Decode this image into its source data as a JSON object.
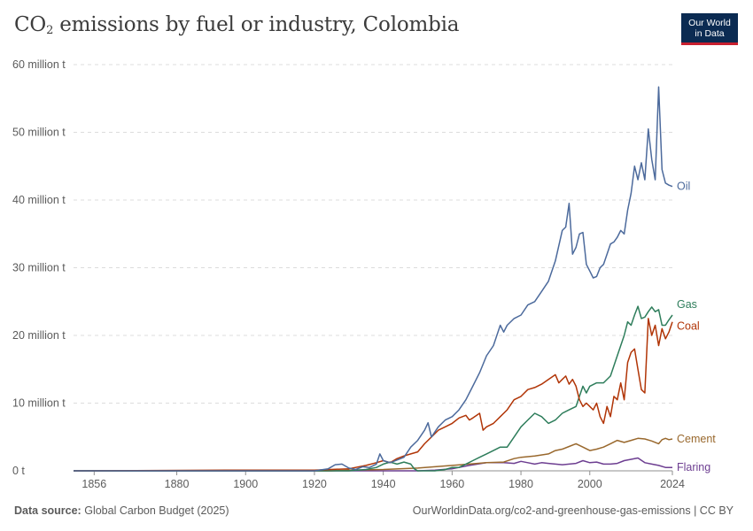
{
  "title_main": "CO",
  "title_sub": "2",
  "title_rest": " emissions by fuel or industry, Colombia",
  "logo": {
    "line1": "Our World",
    "line2": "in Data"
  },
  "footer": {
    "source_label": "Data source:",
    "source_value": "Global Carbon Budget (2025)",
    "right": "OurWorldinData.org/co2-and-greenhouse-gas-emissions | CC BY"
  },
  "chart_data": {
    "type": "line",
    "title": "CO₂ emissions by fuel or industry, Colombia",
    "xlabel": "",
    "ylabel": "",
    "xlim": [
      1850,
      2024
    ],
    "ylim": [
      0,
      60
    ],
    "y_unit": "million t",
    "y_ticks": [
      {
        "value": 0,
        "label": "0 t"
      },
      {
        "value": 10,
        "label": "10 million t"
      },
      {
        "value": 20,
        "label": "20 million t"
      },
      {
        "value": 30,
        "label": "30 million t"
      },
      {
        "value": 40,
        "label": "40 million t"
      },
      {
        "value": 50,
        "label": "50 million t"
      },
      {
        "value": 60,
        "label": "60 million t"
      }
    ],
    "x_ticks": [
      {
        "value": 1856,
        "label": "1856"
      },
      {
        "value": 1880,
        "label": "1880"
      },
      {
        "value": 1900,
        "label": "1900"
      },
      {
        "value": 1920,
        "label": "1920"
      },
      {
        "value": 1940,
        "label": "1940"
      },
      {
        "value": 1960,
        "label": "1960"
      },
      {
        "value": 1980,
        "label": "1980"
      },
      {
        "value": 2000,
        "label": "2000"
      },
      {
        "value": 2024,
        "label": "2024"
      }
    ],
    "series": [
      {
        "name": "Oil",
        "color": "#4c6a9c",
        "points": [
          [
            1850,
            0
          ],
          [
            1920,
            0
          ],
          [
            1924,
            0.3
          ],
          [
            1926,
            0.9
          ],
          [
            1928,
            1.0
          ],
          [
            1930,
            0.4
          ],
          [
            1932,
            0.2
          ],
          [
            1934,
            0.6
          ],
          [
            1936,
            0.5
          ],
          [
            1938,
            1.0
          ],
          [
            1939,
            2.5
          ],
          [
            1940,
            1.5
          ],
          [
            1942,
            1.2
          ],
          [
            1944,
            1.6
          ],
          [
            1946,
            2.0
          ],
          [
            1948,
            3.5
          ],
          [
            1950,
            4.5
          ],
          [
            1952,
            6.0
          ],
          [
            1953,
            7.1
          ],
          [
            1954,
            5.0
          ],
          [
            1956,
            6.5
          ],
          [
            1958,
            7.5
          ],
          [
            1960,
            8.0
          ],
          [
            1962,
            9.0
          ],
          [
            1964,
            10.5
          ],
          [
            1966,
            12.5
          ],
          [
            1968,
            14.5
          ],
          [
            1970,
            17.0
          ],
          [
            1972,
            18.5
          ],
          [
            1974,
            21.5
          ],
          [
            1975,
            20.5
          ],
          [
            1976,
            21.5
          ],
          [
            1978,
            22.5
          ],
          [
            1980,
            23.0
          ],
          [
            1982,
            24.5
          ],
          [
            1984,
            25.0
          ],
          [
            1986,
            26.5
          ],
          [
            1988,
            28.0
          ],
          [
            1990,
            31.0
          ],
          [
            1992,
            35.5
          ],
          [
            1993,
            36.0
          ],
          [
            1994,
            39.5
          ],
          [
            1995,
            32.0
          ],
          [
            1996,
            33.0
          ],
          [
            1997,
            35.0
          ],
          [
            1998,
            35.2
          ],
          [
            1999,
            30.5
          ],
          [
            2000,
            29.5
          ],
          [
            2001,
            28.5
          ],
          [
            2002,
            28.7
          ],
          [
            2003,
            30.0
          ],
          [
            2004,
            30.5
          ],
          [
            2005,
            32.0
          ],
          [
            2006,
            33.5
          ],
          [
            2007,
            33.8
          ],
          [
            2008,
            34.5
          ],
          [
            2009,
            35.5
          ],
          [
            2010,
            35.0
          ],
          [
            2011,
            38.5
          ],
          [
            2012,
            41.0
          ],
          [
            2013,
            45.0
          ],
          [
            2014,
            43.0
          ],
          [
            2015,
            45.5
          ],
          [
            2016,
            43.0
          ],
          [
            2017,
            50.5
          ],
          [
            2018,
            46.0
          ],
          [
            2019,
            43.0
          ],
          [
            2020,
            56.7
          ],
          [
            2021,
            44.5
          ],
          [
            2022,
            42.5
          ],
          [
            2023,
            42.2
          ],
          [
            2024,
            42.0
          ]
        ]
      },
      {
        "name": "Gas",
        "color": "#2e7d5b",
        "points": [
          [
            1850,
            0
          ],
          [
            1925,
            0
          ],
          [
            1930,
            0
          ],
          [
            1935,
            0.2
          ],
          [
            1938,
            0.5
          ],
          [
            1940,
            1.0
          ],
          [
            1942,
            1.3
          ],
          [
            1944,
            1.0
          ],
          [
            1946,
            1.3
          ],
          [
            1948,
            1.0
          ],
          [
            1949,
            0.3
          ],
          [
            1950,
            0
          ],
          [
            1955,
            0
          ],
          [
            1958,
            0.2
          ],
          [
            1960,
            0.5
          ],
          [
            1962,
            0.5
          ],
          [
            1964,
            1.0
          ],
          [
            1966,
            1.5
          ],
          [
            1968,
            2.0
          ],
          [
            1970,
            2.5
          ],
          [
            1972,
            3.0
          ],
          [
            1974,
            3.5
          ],
          [
            1976,
            3.5
          ],
          [
            1978,
            5.0
          ],
          [
            1980,
            6.5
          ],
          [
            1982,
            7.5
          ],
          [
            1984,
            8.5
          ],
          [
            1986,
            8.0
          ],
          [
            1988,
            7.0
          ],
          [
            1990,
            7.5
          ],
          [
            1992,
            8.5
          ],
          [
            1994,
            9.0
          ],
          [
            1996,
            9.5
          ],
          [
            1998,
            12.5
          ],
          [
            1999,
            11.5
          ],
          [
            2000,
            12.5
          ],
          [
            2002,
            13.0
          ],
          [
            2004,
            13.0
          ],
          [
            2006,
            14.0
          ],
          [
            2008,
            17.0
          ],
          [
            2010,
            20.0
          ],
          [
            2011,
            22.0
          ],
          [
            2012,
            21.5
          ],
          [
            2013,
            23.0
          ],
          [
            2014,
            24.3
          ],
          [
            2015,
            22.5
          ],
          [
            2016,
            22.7
          ],
          [
            2017,
            23.5
          ],
          [
            2018,
            24.2
          ],
          [
            2019,
            23.5
          ],
          [
            2020,
            23.8
          ],
          [
            2021,
            21.5
          ],
          [
            2022,
            21.5
          ],
          [
            2023,
            22.3
          ],
          [
            2024,
            23.0
          ]
        ]
      },
      {
        "name": "Coal",
        "color": "#b13507",
        "points": [
          [
            1850,
            0
          ],
          [
            1900,
            0.1
          ],
          [
            1920,
            0.1
          ],
          [
            1930,
            0.3
          ],
          [
            1935,
            0.8
          ],
          [
            1938,
            1.2
          ],
          [
            1940,
            1.5
          ],
          [
            1942,
            1.2
          ],
          [
            1944,
            1.8
          ],
          [
            1946,
            2.2
          ],
          [
            1948,
            2.5
          ],
          [
            1950,
            2.8
          ],
          [
            1952,
            4.0
          ],
          [
            1954,
            5.0
          ],
          [
            1956,
            6.0
          ],
          [
            1958,
            6.5
          ],
          [
            1960,
            7.0
          ],
          [
            1962,
            7.8
          ],
          [
            1964,
            8.2
          ],
          [
            1965,
            7.5
          ],
          [
            1966,
            7.8
          ],
          [
            1968,
            8.5
          ],
          [
            1969,
            6.0
          ],
          [
            1970,
            6.5
          ],
          [
            1972,
            7.0
          ],
          [
            1974,
            8.0
          ],
          [
            1976,
            9.0
          ],
          [
            1978,
            10.5
          ],
          [
            1980,
            11.0
          ],
          [
            1982,
            12.0
          ],
          [
            1984,
            12.3
          ],
          [
            1986,
            12.8
          ],
          [
            1988,
            13.5
          ],
          [
            1990,
            14.2
          ],
          [
            1991,
            13.0
          ],
          [
            1992,
            13.5
          ],
          [
            1993,
            14.0
          ],
          [
            1994,
            12.8
          ],
          [
            1995,
            13.5
          ],
          [
            1996,
            12.5
          ],
          [
            1997,
            10.5
          ],
          [
            1998,
            9.5
          ],
          [
            1999,
            10.0
          ],
          [
            2000,
            9.5
          ],
          [
            2001,
            9.0
          ],
          [
            2002,
            10.0
          ],
          [
            2003,
            8.0
          ],
          [
            2004,
            7.0
          ],
          [
            2005,
            9.5
          ],
          [
            2006,
            8.0
          ],
          [
            2007,
            11.0
          ],
          [
            2008,
            10.5
          ],
          [
            2009,
            13.0
          ],
          [
            2010,
            10.5
          ],
          [
            2011,
            16.0
          ],
          [
            2012,
            17.5
          ],
          [
            2013,
            18.0
          ],
          [
            2014,
            15.0
          ],
          [
            2015,
            12.0
          ],
          [
            2016,
            11.5
          ],
          [
            2017,
            22.5
          ],
          [
            2018,
            20.0
          ],
          [
            2019,
            21.5
          ],
          [
            2020,
            18.5
          ],
          [
            2021,
            21.0
          ],
          [
            2022,
            19.5
          ],
          [
            2023,
            20.5
          ],
          [
            2024,
            22.0
          ]
        ]
      },
      {
        "name": "Cement",
        "color": "#99682d",
        "points": [
          [
            1850,
            0
          ],
          [
            1925,
            0
          ],
          [
            1930,
            0.1
          ],
          [
            1940,
            0.2
          ],
          [
            1950,
            0.4
          ],
          [
            1960,
            0.8
          ],
          [
            1965,
            1.0
          ],
          [
            1970,
            1.2
          ],
          [
            1975,
            1.3
          ],
          [
            1978,
            1.8
          ],
          [
            1980,
            2.0
          ],
          [
            1984,
            2.2
          ],
          [
            1988,
            2.5
          ],
          [
            1990,
            3.0
          ],
          [
            1992,
            3.2
          ],
          [
            1994,
            3.6
          ],
          [
            1996,
            4.0
          ],
          [
            1998,
            3.5
          ],
          [
            2000,
            3.0
          ],
          [
            2002,
            3.2
          ],
          [
            2004,
            3.5
          ],
          [
            2006,
            4.0
          ],
          [
            2008,
            4.5
          ],
          [
            2010,
            4.2
          ],
          [
            2012,
            4.5
          ],
          [
            2014,
            4.8
          ],
          [
            2016,
            4.7
          ],
          [
            2018,
            4.4
          ],
          [
            2020,
            4.0
          ],
          [
            2021,
            4.6
          ],
          [
            2022,
            4.8
          ],
          [
            2023,
            4.6
          ],
          [
            2024,
            4.7
          ]
        ]
      },
      {
        "name": "Flaring",
        "color": "#6d3e91",
        "points": [
          [
            1850,
            0
          ],
          [
            1950,
            0
          ],
          [
            1955,
            0.1
          ],
          [
            1960,
            0.3
          ],
          [
            1965,
            0.8
          ],
          [
            1970,
            1.2
          ],
          [
            1975,
            1.2
          ],
          [
            1978,
            1.1
          ],
          [
            1980,
            1.4
          ],
          [
            1982,
            1.2
          ],
          [
            1984,
            1.0
          ],
          [
            1986,
            1.2
          ],
          [
            1988,
            1.1
          ],
          [
            1990,
            1.0
          ],
          [
            1992,
            0.9
          ],
          [
            1994,
            1.0
          ],
          [
            1996,
            1.1
          ],
          [
            1998,
            1.5
          ],
          [
            2000,
            1.2
          ],
          [
            2002,
            1.3
          ],
          [
            2004,
            1.0
          ],
          [
            2006,
            1.0
          ],
          [
            2008,
            1.1
          ],
          [
            2010,
            1.5
          ],
          [
            2012,
            1.7
          ],
          [
            2014,
            1.9
          ],
          [
            2016,
            1.2
          ],
          [
            2018,
            1.0
          ],
          [
            2020,
            0.8
          ],
          [
            2022,
            0.5
          ],
          [
            2024,
            0.5
          ]
        ]
      }
    ]
  }
}
